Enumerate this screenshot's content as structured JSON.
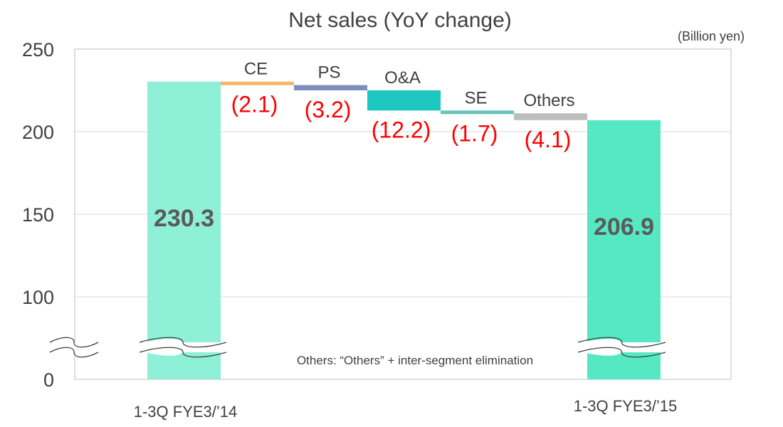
{
  "chart_data": {
    "type": "bar",
    "subtype": "waterfall",
    "title": "Net sales (YoY change)",
    "unit": "(Billion yen)",
    "ylim": [
      0,
      250
    ],
    "yticks": [
      "0",
      "100",
      "150",
      "200",
      "250"
    ],
    "axis_break": true,
    "grid": true,
    "start": {
      "label": "1-3Q FYE3/’14",
      "value": 230.3,
      "value_label": "230.3",
      "color": "#8ef0d6"
    },
    "end": {
      "label": "1-3Q FYE3/’15",
      "value": 206.9,
      "value_label": "206.9",
      "color": "#55e8c2"
    },
    "steps": [
      {
        "label": "CE",
        "value": -2.1,
        "value_label": "(2.1)",
        "color": "#f7b56a"
      },
      {
        "label": "PS",
        "value": -3.2,
        "value_label": "(3.2)",
        "color": "#7e8fbf"
      },
      {
        "label": "O&A",
        "value": -12.2,
        "value_label": "(12.2)",
        "color": "#1cc7c0"
      },
      {
        "label": "SE",
        "value": -1.7,
        "value_label": "(1.7)",
        "color": "#66c4b9"
      },
      {
        "label": "Others",
        "value": -4.1,
        "value_label": "(4.1)",
        "color": "#bdbdbd"
      }
    ],
    "negative_label_color": "#ff0000",
    "note": "Others: “Others” + inter-segment elimination"
  }
}
